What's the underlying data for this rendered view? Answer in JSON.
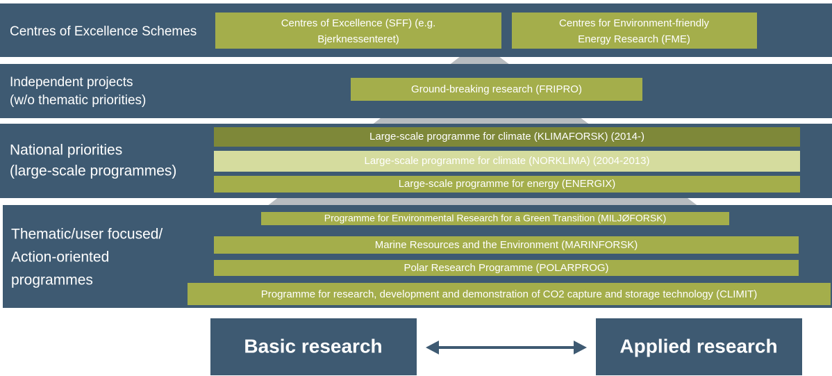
{
  "rows": [
    {
      "label": [
        "Centres of Excellence Schemes"
      ],
      "boxes": [
        [
          "Centres of Excellence (SFF) (e.g.",
          "Bjerknessenteret)"
        ],
        [
          "Centres for Environment-friendly",
          "Energy Research (FME)"
        ]
      ]
    },
    {
      "label": [
        "Independent projects",
        "(w/o thematic priorities)"
      ],
      "boxes": [
        [
          "Ground-breaking research (FRIPRO)"
        ]
      ]
    },
    {
      "label": [
        "National priorities",
        "(large-scale programmes)"
      ],
      "boxes": [
        [
          "Large-scale programme for climate (KLIMAFORSK) (2014-)"
        ],
        [
          "Large-scale programme for climate (NORKLIMA) (2004-2013)"
        ],
        [
          "Large-scale programme for energy (ENERGIX)"
        ]
      ]
    },
    {
      "label": [
        "Thematic/user focused/",
        "Action-oriented",
        "programmes"
      ],
      "boxes": [
        [
          "Programme for Environmental Research for a Green Transition (MILJØFORSK)"
        ],
        [
          "Marine Resources and the Environment (MARINFORSK)"
        ],
        [
          "Polar Research Programme (POLARPROG)"
        ],
        [
          "Programme for research, development and demonstration of CO2 capture and storage technology (CLIMIT)"
        ]
      ]
    }
  ],
  "footer": {
    "left": "Basic research",
    "right": "Applied research"
  }
}
